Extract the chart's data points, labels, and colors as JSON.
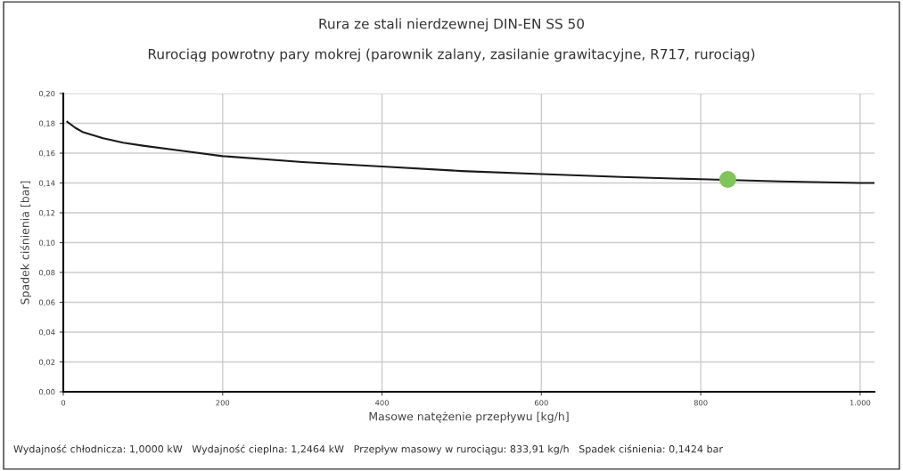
{
  "chart_data": {
    "type": "line",
    "title": "Rura ze stali nierdzewnej DIN-EN SS 50",
    "subtitle": "Rurociąg powrotny pary mokrej (parownik zalany, zasilanie grawitacyjne, R717, rurociąg)",
    "xlabel": "Masowe natężenie przepływu [kg/h]",
    "ylabel": "Spadek ciśnienia [bar]",
    "annotations": [
      "Wydajność chłodnicza: 1,0000 kW   Wydajność cieplna: 1,2464 kW   Przepływ masowy w rurociągu: 833,91 kg/h   Spadek ciśnienia: 0,1424 bar"
    ],
    "series": [
      {
        "marker": "none",
        "color": "#1a1a1a",
        "x": [
          5,
          15,
          25,
          50,
          75,
          100,
          150,
          200,
          300,
          400,
          500,
          600,
          700,
          800,
          900,
          1000,
          1018
        ],
        "values": [
          0.181,
          0.177,
          0.174,
          0.17,
          0.167,
          0.165,
          0.1615,
          0.158,
          0.154,
          0.151,
          0.148,
          0.146,
          0.144,
          0.1425,
          0.141,
          0.14,
          0.14
        ]
      },
      {
        "type": "scatter",
        "marker": "circle",
        "color": "#80c45a",
        "x": [
          833.91
        ],
        "values": [
          0.1424
        ]
      }
    ],
    "xlim": [
      0,
      1018
    ],
    "xticks": [
      0,
      200,
      400,
      600,
      800,
      {
        "value": 1000,
        "label": "1.000"
      }
    ],
    "ylim": [
      0,
      0.2
    ],
    "yticks": [
      {
        "value": 0,
        "label": "0,00"
      },
      {
        "value": 0.02,
        "label": "0,02"
      },
      {
        "value": 0.04,
        "label": "0,04"
      },
      {
        "value": 0.06,
        "label": "0,06"
      },
      {
        "value": 0.08,
        "label": "0,08"
      },
      {
        "value": 0.1,
        "label": "0,10"
      },
      {
        "value": 0.12,
        "label": "0,12"
      },
      {
        "value": 0.14,
        "label": "0,14"
      },
      {
        "value": 0.16,
        "label": "0,16"
      },
      {
        "value": 0.18,
        "label": "0,18"
      },
      {
        "value": 0.2,
        "label": "0,20"
      }
    ],
    "grid": true
  }
}
